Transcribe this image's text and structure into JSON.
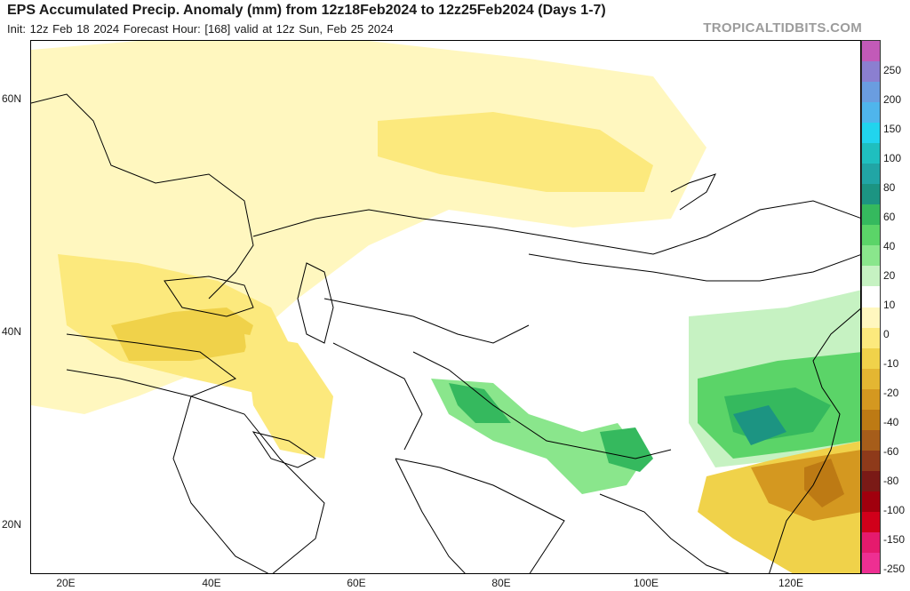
{
  "header": {
    "title": "EPS Accumulated Precip. Anomaly (mm) from 12z18Feb2024 to 12z25Feb2024 (Days 1-7)",
    "subtitle": "Init: 12z Feb 18 2024   Forecast Hour: [168]   valid at 12z Sun, Feb 25 2024",
    "brand": "TROPICALTIDBITS.COM"
  },
  "axes": {
    "lat_labels": [
      "60N",
      "40N",
      "20N"
    ],
    "lon_labels": [
      "20E",
      "40E",
      "60E",
      "80E",
      "100E",
      "120E"
    ]
  },
  "colorbar": {
    "unit": "mm",
    "labels": [
      "250",
      "200",
      "150",
      "100",
      "80",
      "60",
      "40",
      "20",
      "10",
      "0",
      "-10",
      "-20",
      "-40",
      "-60",
      "-80",
      "-100",
      "-150",
      "-250"
    ],
    "colors": [
      "#c25ab8",
      "#8b7fd0",
      "#6a9de0",
      "#4fb5ec",
      "#21d4ee",
      "#1fbfbf",
      "#21a5a5",
      "#1c9482",
      "#35b95e",
      "#5bd468",
      "#8ae68c",
      "#c6f2c2",
      "#ffffff",
      "#fff7bf",
      "#fce97d",
      "#f0d24a",
      "#e4b632",
      "#d49820",
      "#bd7a14",
      "#a65d1a",
      "#8e3a1a",
      "#7a1a16",
      "#a0000d",
      "#d0001a",
      "#e51a6d",
      "#ee2f92"
    ]
  }
}
